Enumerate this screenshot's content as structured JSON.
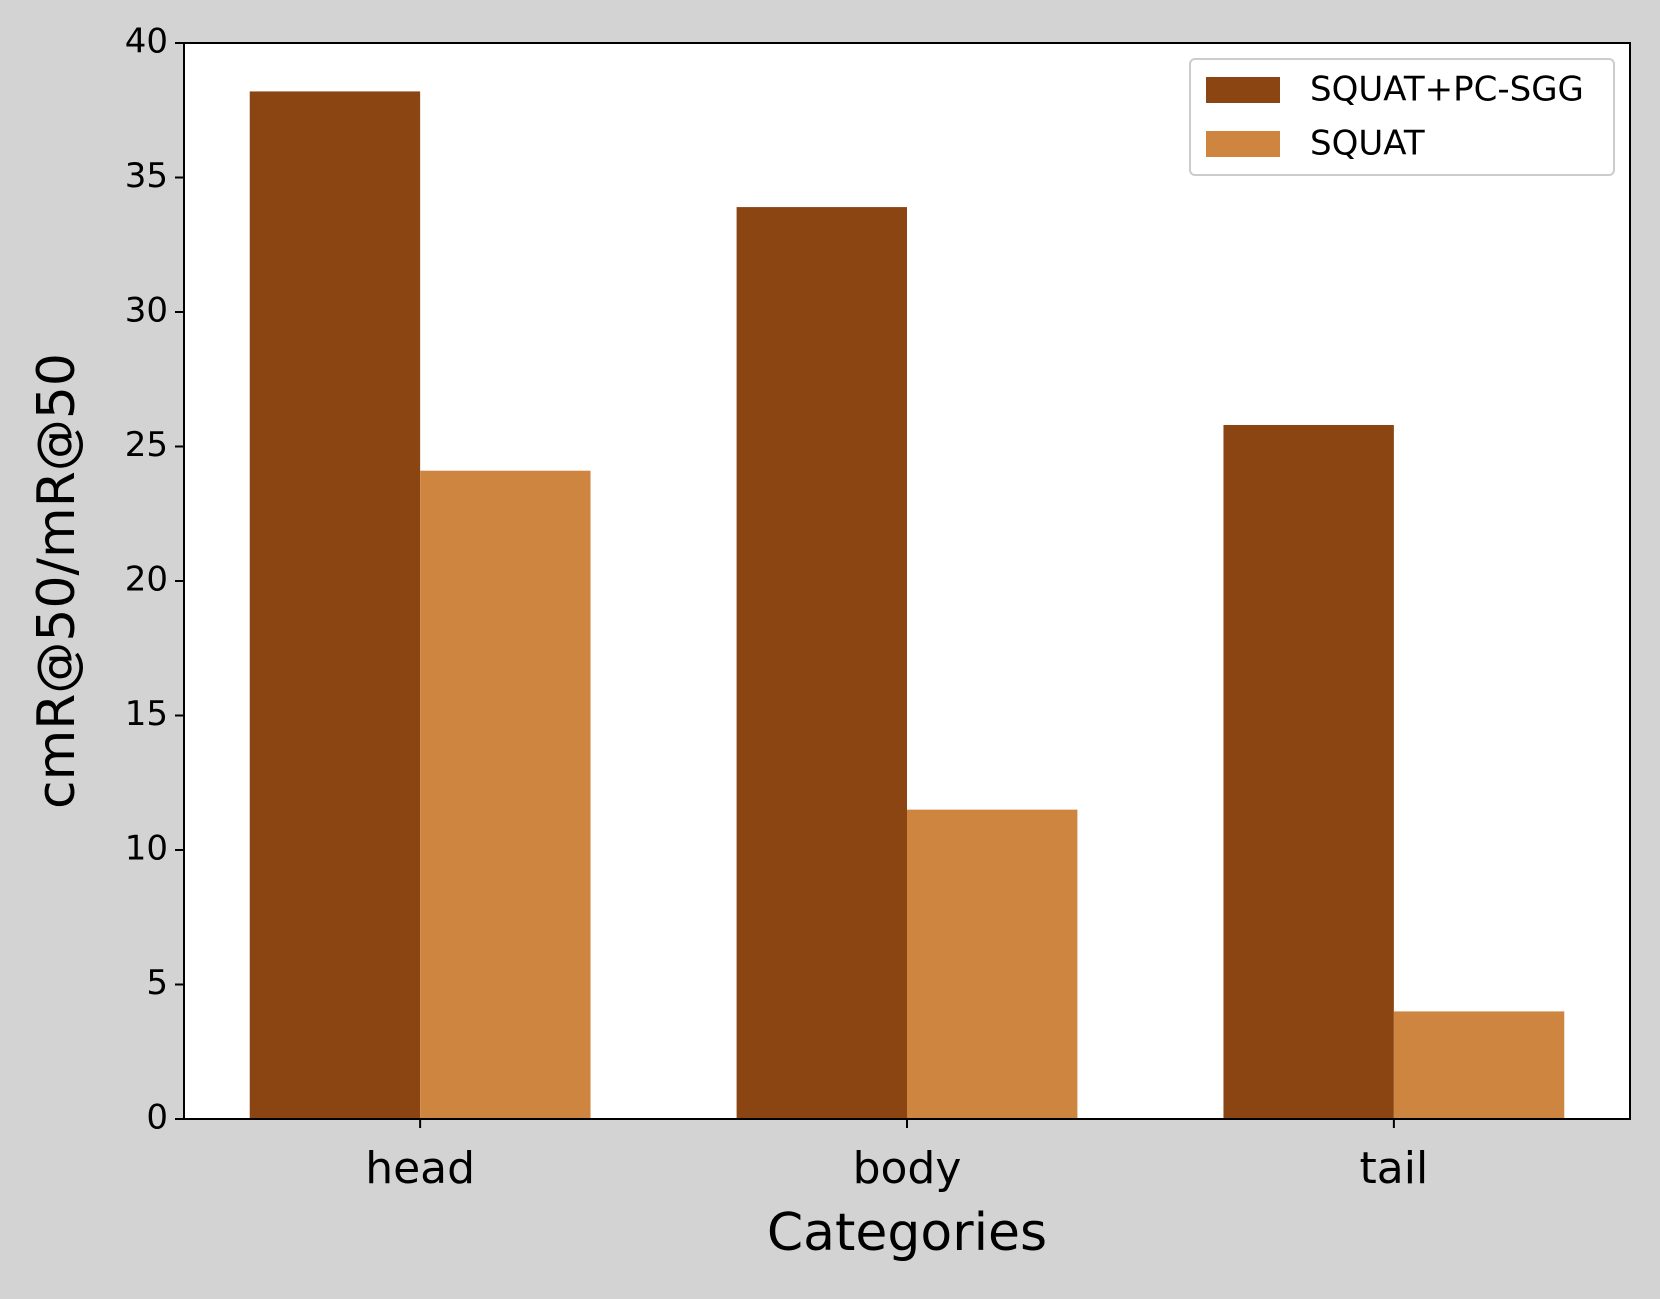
{
  "chart_data": {
    "type": "bar",
    "xlabel": "Categories",
    "ylabel": "cmR@50/mR@50",
    "categories": [
      "head",
      "body",
      "tail"
    ],
    "series": [
      {
        "name": "SQUAT+PC-SGG",
        "color": "#8b4513",
        "values": [
          38.2,
          33.9,
          25.8
        ]
      },
      {
        "name": "SQUAT",
        "color": "#cd853f",
        "values": [
          24.1,
          11.5,
          4.0
        ]
      }
    ],
    "ylim": [
      0,
      40
    ],
    "yticks": [
      0,
      5,
      10,
      15,
      20,
      25,
      30,
      35,
      40
    ],
    "legend": "upper right"
  }
}
